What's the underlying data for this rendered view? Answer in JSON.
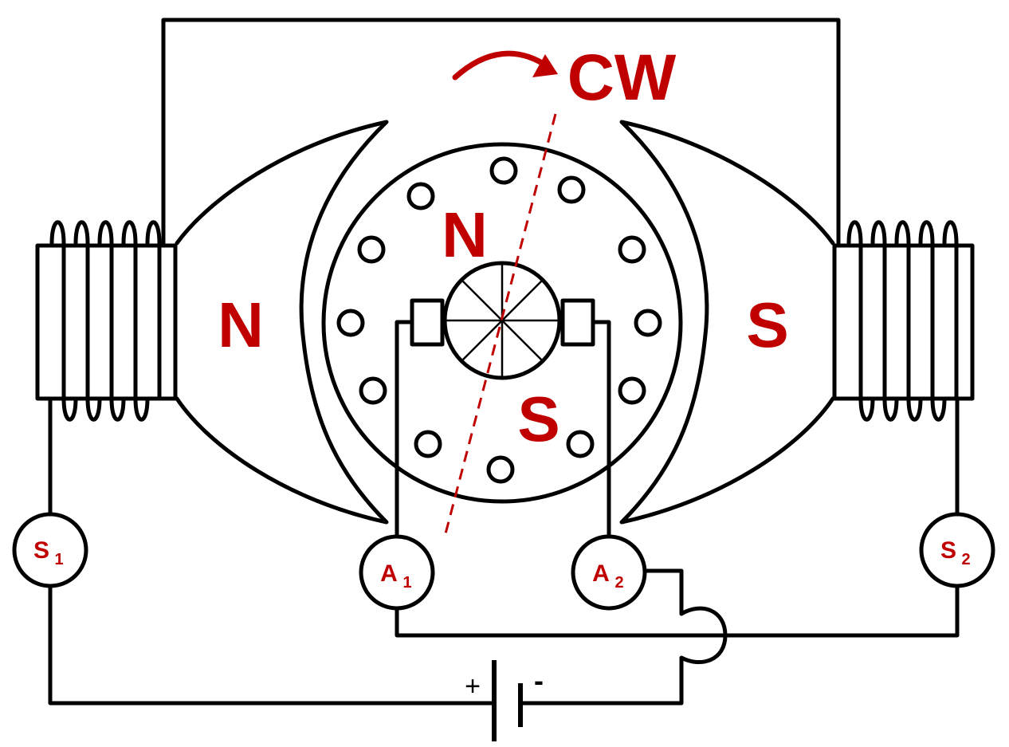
{
  "colors": {
    "accent": "#c00000",
    "line": "#000000",
    "background": "#ffffff"
  },
  "labels": {
    "rotation": "CW",
    "pole_left": "N",
    "pole_right": "S",
    "armature_north": "N",
    "armature_south": "S",
    "terminal_s1": {
      "main": "S",
      "sub": "1"
    },
    "terminal_s2": {
      "main": "S",
      "sub": "2"
    },
    "terminal_a1": {
      "main": "A",
      "sub": "1"
    },
    "terminal_a2": {
      "main": "A",
      "sub": "2"
    },
    "battery_plus": "+",
    "battery_minus": "-"
  }
}
